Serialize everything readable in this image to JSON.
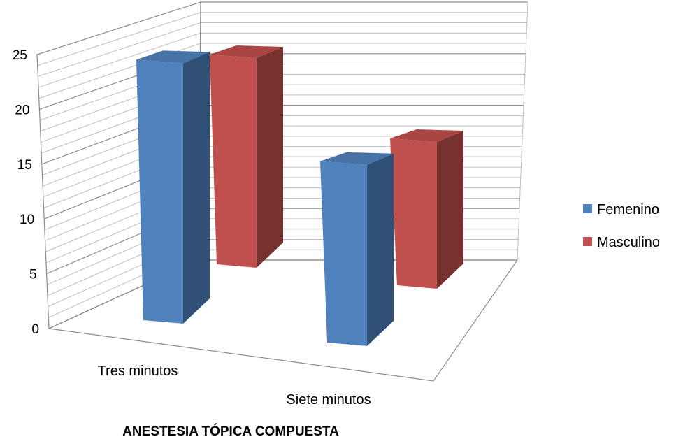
{
  "chart_data": {
    "type": "bar",
    "title": "ANESTESIA TÓPICA COMPUESTA",
    "categories": [
      "Tres minutos",
      "Siete minutos"
    ],
    "series": [
      {
        "name": "Femenino",
        "values": [
          23,
          16
        ],
        "color": "#4F81BD"
      },
      {
        "name": "Masculino",
        "values": [
          20,
          14
        ],
        "color": "#C0504D"
      }
    ],
    "ylim": [
      0,
      25
    ],
    "yticks": [
      0,
      5,
      10,
      15,
      20,
      25
    ],
    "grid": true,
    "legend": "right",
    "style": "3d-column"
  }
}
